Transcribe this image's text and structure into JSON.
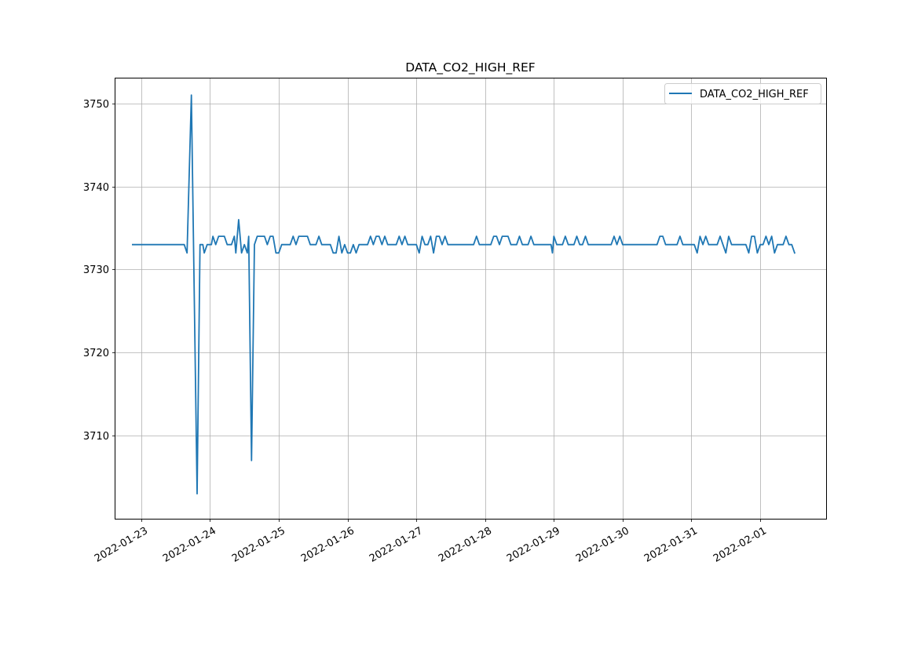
{
  "chart_data": {
    "type": "line",
    "title": "DATA_CO2_HIGH_REF",
    "xlabel": "",
    "ylabel": "",
    "grid": true,
    "legend_position": "top-right",
    "x_axis_type": "datetime",
    "xlim": [
      "2022-01-22 15:00",
      "2022-02-01 23:00"
    ],
    "ylim": [
      3700,
      3753
    ],
    "x_tick_labels": [
      "2022-01-23",
      "2022-01-24",
      "2022-01-25",
      "2022-01-26",
      "2022-01-27",
      "2022-01-28",
      "2022-01-29",
      "2022-01-30",
      "2022-01-31",
      "2022-02-01"
    ],
    "y_tick_labels": [
      "3710",
      "3720",
      "3730",
      "3740",
      "3750"
    ],
    "series": [
      {
        "name": "DATA_CO2_HIGH_REF",
        "color": "#1f77b4",
        "points": [
          [
            "2022-01-22 21:00",
            3733
          ],
          [
            "2022-01-23 00:00",
            3733
          ],
          [
            "2022-01-23 04:00",
            3733
          ],
          [
            "2022-01-23 08:00",
            3733
          ],
          [
            "2022-01-23 12:00",
            3733
          ],
          [
            "2022-01-23 15:00",
            3733
          ],
          [
            "2022-01-23 16:00",
            3732
          ],
          [
            "2022-01-23 17:30",
            3751
          ],
          [
            "2022-01-23 19:30",
            3703
          ],
          [
            "2022-01-23 20:30",
            3733
          ],
          [
            "2022-01-23 21:30",
            3733
          ],
          [
            "2022-01-23 22:00",
            3732
          ],
          [
            "2022-01-23 23:00",
            3733
          ],
          [
            "2022-01-24 00:30",
            3733
          ],
          [
            "2022-01-24 01:00",
            3734
          ],
          [
            "2022-01-24 02:00",
            3733
          ],
          [
            "2022-01-24 03:00",
            3734
          ],
          [
            "2022-01-24 05:00",
            3734
          ],
          [
            "2022-01-24 06:00",
            3733
          ],
          [
            "2022-01-24 07:30",
            3733
          ],
          [
            "2022-01-24 08:30",
            3734
          ],
          [
            "2022-01-24 09:00",
            3732
          ],
          [
            "2022-01-24 10:00",
            3736
          ],
          [
            "2022-01-24 11:00",
            3732
          ],
          [
            "2022-01-24 12:00",
            3733
          ],
          [
            "2022-01-24 13:00",
            3732
          ],
          [
            "2022-01-24 13:30",
            3734
          ],
          [
            "2022-01-24 14:30",
            3707
          ],
          [
            "2022-01-24 15:30",
            3733
          ],
          [
            "2022-01-24 16:30",
            3734
          ],
          [
            "2022-01-24 19:00",
            3734
          ],
          [
            "2022-01-24 20:00",
            3733
          ],
          [
            "2022-01-24 21:00",
            3734
          ],
          [
            "2022-01-24 22:00",
            3734
          ],
          [
            "2022-01-24 23:00",
            3732
          ],
          [
            "2022-01-25 00:00",
            3732
          ],
          [
            "2022-01-25 01:00",
            3733
          ],
          [
            "2022-01-25 04:00",
            3733
          ],
          [
            "2022-01-25 05:00",
            3734
          ],
          [
            "2022-01-25 06:00",
            3733
          ],
          [
            "2022-01-25 07:00",
            3734
          ],
          [
            "2022-01-25 10:00",
            3734
          ],
          [
            "2022-01-25 11:00",
            3733
          ],
          [
            "2022-01-25 13:00",
            3733
          ],
          [
            "2022-01-25 14:00",
            3734
          ],
          [
            "2022-01-25 15:00",
            3733
          ],
          [
            "2022-01-25 18:00",
            3733
          ],
          [
            "2022-01-25 19:00",
            3732
          ],
          [
            "2022-01-25 20:00",
            3732
          ],
          [
            "2022-01-25 21:00",
            3734
          ],
          [
            "2022-01-25 22:00",
            3732
          ],
          [
            "2022-01-25 23:00",
            3733
          ],
          [
            "2022-01-26 00:00",
            3732
          ],
          [
            "2022-01-26 01:00",
            3732
          ],
          [
            "2022-01-26 02:00",
            3733
          ],
          [
            "2022-01-26 03:00",
            3732
          ],
          [
            "2022-01-26 04:00",
            3733
          ],
          [
            "2022-01-26 07:00",
            3733
          ],
          [
            "2022-01-26 08:00",
            3734
          ],
          [
            "2022-01-26 09:00",
            3733
          ],
          [
            "2022-01-26 10:00",
            3734
          ],
          [
            "2022-01-26 11:00",
            3734
          ],
          [
            "2022-01-26 12:00",
            3733
          ],
          [
            "2022-01-26 13:00",
            3734
          ],
          [
            "2022-01-26 14:00",
            3733
          ],
          [
            "2022-01-26 17:00",
            3733
          ],
          [
            "2022-01-26 18:00",
            3734
          ],
          [
            "2022-01-26 19:00",
            3733
          ],
          [
            "2022-01-26 20:00",
            3734
          ],
          [
            "2022-01-26 21:00",
            3733
          ],
          [
            "2022-01-27 00:00",
            3733
          ],
          [
            "2022-01-27 01:00",
            3732
          ],
          [
            "2022-01-27 02:00",
            3734
          ],
          [
            "2022-01-27 03:00",
            3733
          ],
          [
            "2022-01-27 04:00",
            3733
          ],
          [
            "2022-01-27 05:00",
            3734
          ],
          [
            "2022-01-27 06:00",
            3732
          ],
          [
            "2022-01-27 07:00",
            3734
          ],
          [
            "2022-01-27 08:00",
            3734
          ],
          [
            "2022-01-27 09:00",
            3733
          ],
          [
            "2022-01-27 10:00",
            3734
          ],
          [
            "2022-01-27 11:00",
            3733
          ],
          [
            "2022-01-27 20:00",
            3733
          ],
          [
            "2022-01-27 21:00",
            3734
          ],
          [
            "2022-01-27 22:00",
            3733
          ],
          [
            "2022-01-28 02:00",
            3733
          ],
          [
            "2022-01-28 03:00",
            3734
          ],
          [
            "2022-01-28 04:00",
            3734
          ],
          [
            "2022-01-28 05:00",
            3733
          ],
          [
            "2022-01-28 06:00",
            3734
          ],
          [
            "2022-01-28 08:00",
            3734
          ],
          [
            "2022-01-28 09:00",
            3733
          ],
          [
            "2022-01-28 11:00",
            3733
          ],
          [
            "2022-01-28 12:00",
            3734
          ],
          [
            "2022-01-28 13:00",
            3733
          ],
          [
            "2022-01-28 15:00",
            3733
          ],
          [
            "2022-01-28 16:00",
            3734
          ],
          [
            "2022-01-28 17:00",
            3733
          ],
          [
            "2022-01-28 23:00",
            3733
          ],
          [
            "2022-01-28 23:30",
            3732
          ],
          [
            "2022-01-29 00:00",
            3734
          ],
          [
            "2022-01-29 01:00",
            3733
          ],
          [
            "2022-01-29 03:00",
            3733
          ],
          [
            "2022-01-29 04:00",
            3734
          ],
          [
            "2022-01-29 05:00",
            3733
          ],
          [
            "2022-01-29 07:00",
            3733
          ],
          [
            "2022-01-29 08:00",
            3734
          ],
          [
            "2022-01-29 09:00",
            3733
          ],
          [
            "2022-01-29 10:00",
            3733
          ],
          [
            "2022-01-29 11:00",
            3734
          ],
          [
            "2022-01-29 12:00",
            3733
          ],
          [
            "2022-01-29 20:00",
            3733
          ],
          [
            "2022-01-29 21:00",
            3734
          ],
          [
            "2022-01-29 22:00",
            3733
          ],
          [
            "2022-01-29 23:00",
            3734
          ],
          [
            "2022-01-30 00:00",
            3733
          ],
          [
            "2022-01-30 12:00",
            3733
          ],
          [
            "2022-01-30 13:00",
            3734
          ],
          [
            "2022-01-30 14:00",
            3734
          ],
          [
            "2022-01-30 15:00",
            3733
          ],
          [
            "2022-01-30 19:00",
            3733
          ],
          [
            "2022-01-30 20:00",
            3734
          ],
          [
            "2022-01-30 21:00",
            3733
          ],
          [
            "2022-01-31 01:00",
            3733
          ],
          [
            "2022-01-31 02:00",
            3732
          ],
          [
            "2022-01-31 03:00",
            3734
          ],
          [
            "2022-01-31 04:00",
            3733
          ],
          [
            "2022-01-31 05:00",
            3734
          ],
          [
            "2022-01-31 06:00",
            3733
          ],
          [
            "2022-01-31 09:00",
            3733
          ],
          [
            "2022-01-31 10:00",
            3734
          ],
          [
            "2022-01-31 11:00",
            3733
          ],
          [
            "2022-01-31 12:00",
            3732
          ],
          [
            "2022-01-31 13:00",
            3734
          ],
          [
            "2022-01-31 14:00",
            3733
          ],
          [
            "2022-01-31 19:00",
            3733
          ],
          [
            "2022-01-31 20:00",
            3732
          ],
          [
            "2022-01-31 21:00",
            3734
          ],
          [
            "2022-01-31 22:00",
            3734
          ],
          [
            "2022-01-31 23:00",
            3732
          ],
          [
            "2022-02-01 00:00",
            3733
          ],
          [
            "2022-02-01 01:00",
            3733
          ],
          [
            "2022-02-01 02:00",
            3734
          ],
          [
            "2022-02-01 03:00",
            3733
          ],
          [
            "2022-02-01 04:00",
            3734
          ],
          [
            "2022-02-01 05:00",
            3732
          ],
          [
            "2022-02-01 06:00",
            3733
          ],
          [
            "2022-02-01 08:00",
            3733
          ],
          [
            "2022-02-01 09:00",
            3734
          ],
          [
            "2022-02-01 10:00",
            3733
          ],
          [
            "2022-02-01 11:00",
            3733
          ],
          [
            "2022-02-01 12:00",
            3732
          ]
        ]
      }
    ]
  }
}
